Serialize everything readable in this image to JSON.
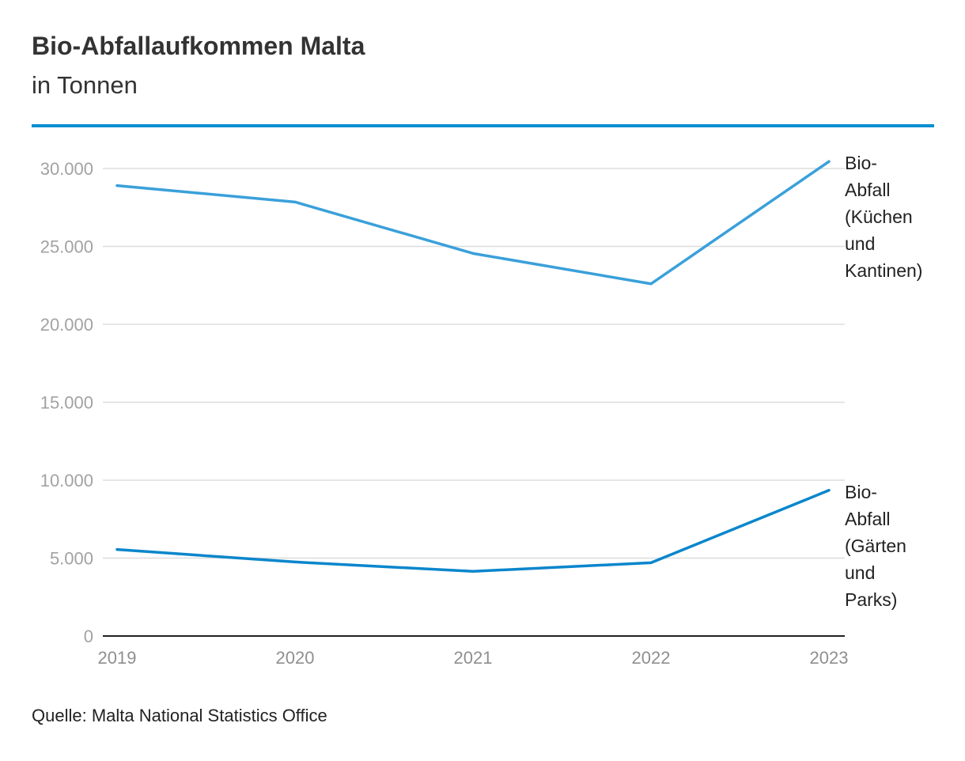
{
  "chart_data": {
    "type": "line",
    "title": "Bio-Abfallaufkommen Malta",
    "subtitle": "in Tonnen",
    "source": "Quelle: Malta National Statistics Office",
    "x": [
      "2019",
      "2020",
      "2021",
      "2022",
      "2023"
    ],
    "ylim": [
      0,
      30000
    ],
    "yticks": [
      0,
      5000,
      10000,
      15000,
      20000,
      25000,
      30000
    ],
    "ytick_labels": [
      "0",
      "5.000",
      "10.000",
      "15.000",
      "20.000",
      "25.000",
      "30.000"
    ],
    "grid": true,
    "series": [
      {
        "name": "Bio-Abfall (Küchen und Kantinen)",
        "label_lines": [
          "Bio-",
          "Abfall",
          "(Küchen",
          "und",
          "Kantinen)"
        ],
        "color": "#3aa0da",
        "values": [
          28900,
          27850,
          24550,
          22600,
          30450
        ]
      },
      {
        "name": "Bio-Abfall (Gärten und Parks)",
        "label_lines": [
          "Bio-",
          "Abfall",
          "(Gärten",
          "und",
          "Parks)"
        ],
        "color": "#0a86cc",
        "values": [
          5550,
          4750,
          4150,
          4700,
          9350
        ]
      }
    ]
  },
  "colors": {
    "accent": "#0a8fd1",
    "grid": "#dddddd",
    "axis": "#222222"
  }
}
